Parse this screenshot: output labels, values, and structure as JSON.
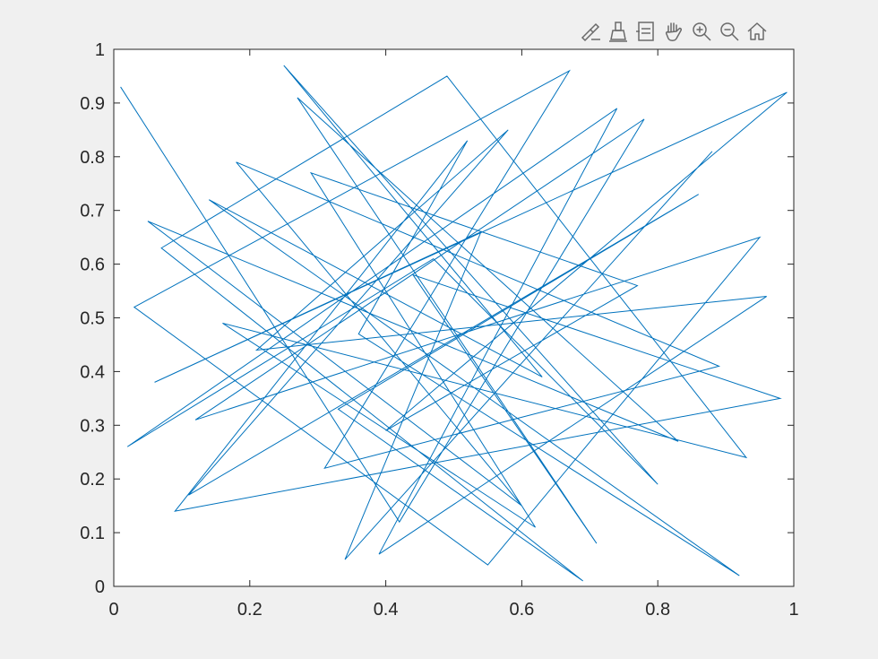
{
  "toolbar": {
    "buttons": [
      {
        "name": "brush-icon"
      },
      {
        "name": "data-tips-icon"
      },
      {
        "name": "legend-icon"
      },
      {
        "name": "pan-hand-icon"
      },
      {
        "name": "zoom-in-icon"
      },
      {
        "name": "zoom-out-icon"
      },
      {
        "name": "home-icon"
      }
    ]
  },
  "colors": {
    "figure_bg": "#f0f0f0",
    "axes_bg": "#ffffff",
    "line": "#0072bd",
    "axis": "#262626"
  },
  "chart_data": {
    "type": "line",
    "title": "",
    "xlabel": "",
    "ylabel": "",
    "xlim": [
      0,
      1
    ],
    "ylim": [
      0,
      1
    ],
    "grid": false,
    "x_ticks": [
      "0",
      "0.2",
      "0.4",
      "0.6",
      "0.8",
      "1"
    ],
    "x_tick_values": [
      0,
      0.2,
      0.4,
      0.6,
      0.8,
      1
    ],
    "y_ticks": [
      "0",
      "0.1",
      "0.2",
      "0.3",
      "0.4",
      "0.5",
      "0.6",
      "0.7",
      "0.8",
      "0.9",
      "1"
    ],
    "y_tick_values": [
      0,
      0.1,
      0.2,
      0.3,
      0.4,
      0.5,
      0.6,
      0.7,
      0.8,
      0.9,
      1
    ],
    "series": [
      {
        "x": [
          0.01,
          0.42,
          0.78,
          0.12,
          0.95,
          0.55,
          0.03,
          0.67,
          0.31,
          0.89,
          0.18,
          0.6,
          0.05,
          0.83,
          0.27,
          0.71,
          0.44,
          0.98,
          0.09,
          0.52,
          0.36,
          0.92,
          0.14,
          0.63,
          0.25,
          0.8,
          0.47,
          0.02,
          0.74,
          0.39,
          0.96,
          0.21,
          0.58,
          0.11,
          0.86,
          0.33,
          0.69,
          0.07,
          0.49,
          0.93,
          0.16,
          0.62,
          0.29,
          0.77,
          0.4,
          0.99,
          0.06,
          0.54,
          0.34,
          0.88
        ],
        "y": [
          0.93,
          0.12,
          0.87,
          0.31,
          0.65,
          0.04,
          0.52,
          0.96,
          0.22,
          0.41,
          0.79,
          0.15,
          0.68,
          0.27,
          0.91,
          0.08,
          0.58,
          0.35,
          0.14,
          0.83,
          0.47,
          0.02,
          0.72,
          0.39,
          0.97,
          0.19,
          0.61,
          0.26,
          0.89,
          0.06,
          0.54,
          0.44,
          0.85,
          0.17,
          0.73,
          0.33,
          0.01,
          0.63,
          0.95,
          0.24,
          0.49,
          0.11,
          0.77,
          0.56,
          0.29,
          0.92,
          0.38,
          0.66,
          0.05,
          0.81
        ]
      }
    ]
  }
}
